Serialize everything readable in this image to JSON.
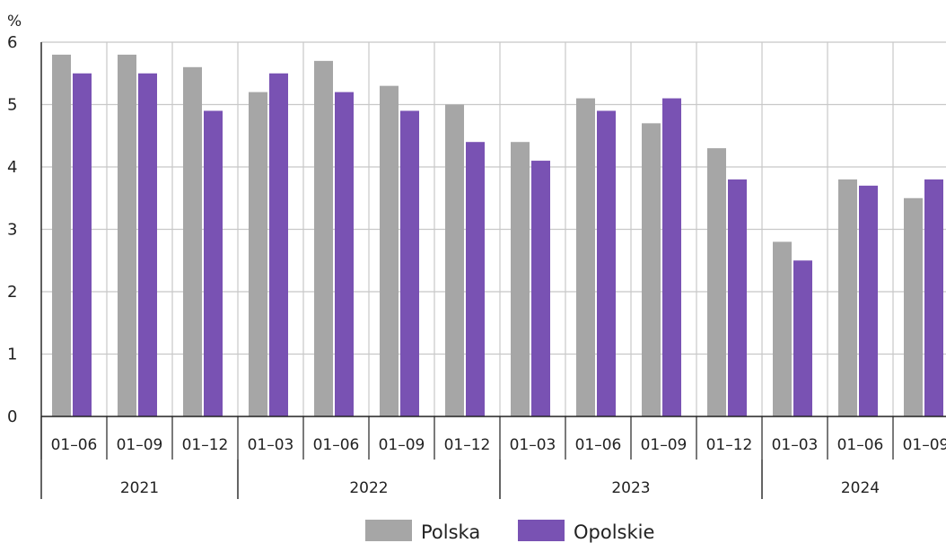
{
  "chart_data": {
    "type": "bar",
    "unit_label": "%",
    "ylim": [
      0,
      6
    ],
    "yticks": [
      0,
      1,
      2,
      3,
      4,
      5,
      6
    ],
    "grid": true,
    "legend_position": "bottom",
    "categories": [
      "01–06",
      "01–09",
      "01–12",
      "01–03",
      "01–06",
      "01–09",
      "01–12",
      "01–03",
      "01–06",
      "01–09",
      "01–12",
      "01–03",
      "01–06",
      "01–09"
    ],
    "years": [
      {
        "label": "2021",
        "start": 0,
        "count": 3
      },
      {
        "label": "2022",
        "start": 3,
        "count": 4
      },
      {
        "label": "2023",
        "start": 7,
        "count": 4
      },
      {
        "label": "2024",
        "start": 11,
        "count": 3
      }
    ],
    "series": [
      {
        "name": "Polska",
        "color": "#a6a6a6",
        "values": [
          5.8,
          5.8,
          5.6,
          5.2,
          5.7,
          5.3,
          5.0,
          4.4,
          5.1,
          4.7,
          4.3,
          2.8,
          3.8,
          3.5
        ]
      },
      {
        "name": "Opolskie",
        "color": "#7952b3",
        "values": [
          5.5,
          5.5,
          4.9,
          5.5,
          5.2,
          4.9,
          4.4,
          4.1,
          4.9,
          5.1,
          3.8,
          2.5,
          3.7,
          3.8
        ]
      }
    ]
  }
}
